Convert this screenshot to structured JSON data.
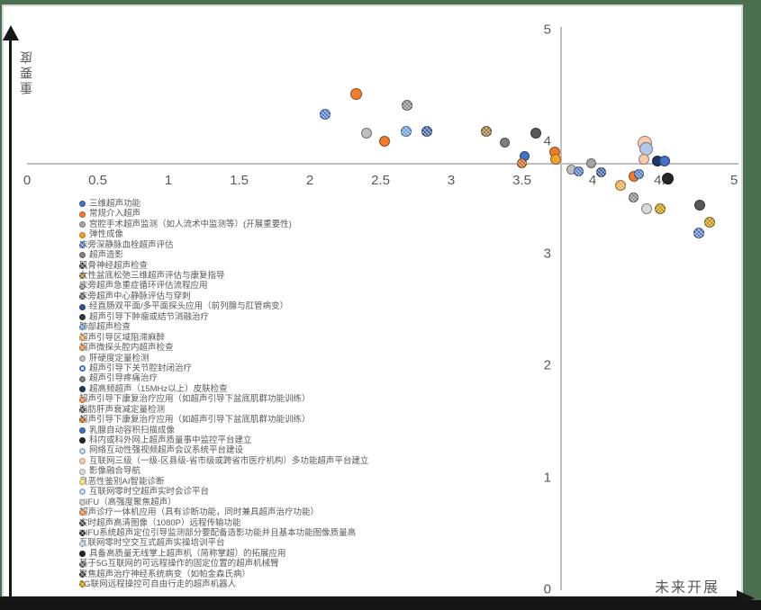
{
  "frame": {
    "background_color": "#4A7050",
    "paper_color": "#FFFFFF",
    "paper_edge_color": "#D9D9D9",
    "quadrant_arrow_color": "#161616"
  },
  "chart_data": {
    "type": "scatter",
    "title": "",
    "xlabel": "未来开展",
    "ylabel": "重要度",
    "xlim": [
      0,
      5
    ],
    "ylim": [
      0,
      5
    ],
    "x_ticks": [
      "0",
      "0.5",
      "1",
      "1.5",
      "2",
      "2.5",
      "3",
      "3.5",
      "4",
      "4.5",
      "5"
    ],
    "x_tick_values": [
      0,
      0.5,
      1,
      1.5,
      2,
      2.5,
      3,
      3.5,
      4,
      4.5,
      5
    ],
    "y_ticks": [
      "5",
      "4",
      "3",
      "2",
      "1",
      "0"
    ],
    "y_tick_values": [
      5,
      4,
      3,
      2,
      1,
      0
    ],
    "axes_cross_at": [
      3.8,
      3.8
    ],
    "grid": false,
    "axis_color": "#BFBFBF",
    "tick_label_color": "#595959",
    "legend_position": "left",
    "points": [
      {
        "x": 2.11,
        "y": 4.24,
        "color": "#4472C4",
        "pattern": true,
        "size": 12
      },
      {
        "x": 2.33,
        "y": 4.42,
        "color": "#ED7D31",
        "pattern": false,
        "size": 13
      },
      {
        "x": 2.69,
        "y": 4.32,
        "color": "#808080",
        "pattern": true,
        "size": 12
      },
      {
        "x": 2.4,
        "y": 4.07,
        "color": "#BFBFBF",
        "pattern": false,
        "size": 12
      },
      {
        "x": 2.53,
        "y": 4.0,
        "color": "#ED7D31",
        "pattern": false,
        "size": 12
      },
      {
        "x": 2.68,
        "y": 4.09,
        "color": "#5B9BD5",
        "pattern": true,
        "size": 12
      },
      {
        "x": 2.83,
        "y": 4.09,
        "color": "#2F5597",
        "pattern": true,
        "size": 12
      },
      {
        "x": 3.25,
        "y": 4.09,
        "color": "#946B2D",
        "pattern": true,
        "size": 12
      },
      {
        "x": 3.38,
        "y": 3.99,
        "color": "#7F7F7F",
        "pattern": false,
        "size": 11
      },
      {
        "x": 3.52,
        "y": 3.87,
        "color": "#4472C4",
        "pattern": false,
        "size": 11
      },
      {
        "x": 3.5,
        "y": 3.8,
        "color": "#C55A11",
        "pattern": true,
        "size": 11
      },
      {
        "x": 3.6,
        "y": 4.07,
        "color": "#595959",
        "pattern": false,
        "size": 12
      },
      {
        "x": 3.73,
        "y": 3.9,
        "color": "#ED7D31",
        "pattern": false,
        "size": 12
      },
      {
        "x": 3.74,
        "y": 3.84,
        "color": "#F0A22E",
        "pattern": false,
        "size": 12
      },
      {
        "x": 3.85,
        "y": 3.75,
        "color": "#BFBFBF",
        "pattern": false,
        "size": 11
      },
      {
        "x": 3.9,
        "y": 3.73,
        "color": "#4472C4",
        "pattern": true,
        "size": 11
      },
      {
        "x": 3.99,
        "y": 3.8,
        "color": "#A5A5A5",
        "pattern": false,
        "size": 11
      },
      {
        "x": 4.06,
        "y": 3.72,
        "color": "#2F5597",
        "pattern": true,
        "size": 11
      },
      {
        "x": 4.2,
        "y": 3.61,
        "color": "#E8A33D",
        "pattern": true,
        "size": 12
      },
      {
        "x": 4.29,
        "y": 3.69,
        "color": "#ED7D31",
        "pattern": false,
        "size": 12
      },
      {
        "x": 4.33,
        "y": 3.71,
        "color": "#4472C4",
        "pattern": true,
        "size": 11
      },
      {
        "x": 4.37,
        "y": 3.98,
        "color": "#F8CBAD",
        "pattern": false,
        "size": 16
      },
      {
        "x": 4.38,
        "y": 3.93,
        "color": "#B4C7E7",
        "pattern": false,
        "size": 15
      },
      {
        "x": 4.36,
        "y": 3.84,
        "color": "#F8CBAD",
        "pattern": false,
        "size": 12
      },
      {
        "x": 4.46,
        "y": 3.82,
        "color": "#1F3864",
        "pattern": false,
        "size": 12
      },
      {
        "x": 4.51,
        "y": 3.82,
        "color": "#4472C4",
        "pattern": false,
        "size": 12
      },
      {
        "x": 4.53,
        "y": 3.67,
        "color": "#262626",
        "pattern": false,
        "size": 13
      },
      {
        "x": 4.29,
        "y": 3.5,
        "color": "#7F7F7F",
        "pattern": true,
        "size": 11
      },
      {
        "x": 4.38,
        "y": 3.4,
        "color": "#D9D9D9",
        "pattern": false,
        "size": 12
      },
      {
        "x": 4.48,
        "y": 3.4,
        "color": "#BF8F00",
        "pattern": true,
        "size": 12
      },
      {
        "x": 4.76,
        "y": 3.43,
        "color": "#595959",
        "pattern": false,
        "size": 12
      },
      {
        "x": 4.83,
        "y": 3.28,
        "color": "#BF8F00",
        "pattern": true,
        "size": 12
      },
      {
        "x": 4.75,
        "y": 3.18,
        "color": "#4472C4",
        "pattern": true,
        "size": 12
      }
    ],
    "legend": [
      {
        "label": "三维超声功能",
        "color": "#4472C4",
        "pattern": false
      },
      {
        "label": "常规介入超声",
        "color": "#ED7D31",
        "pattern": false
      },
      {
        "label": "宫腔手术超声监测（如人流术中监测等）(开展重要性)",
        "color": "#A5A5A5",
        "pattern": false
      },
      {
        "label": "弹性成像",
        "color": "#F0A22E",
        "pattern": false
      },
      {
        "label": "床旁深静脉血栓超声评估",
        "color": "#4472C4",
        "pattern": true
      },
      {
        "label": "超声造影",
        "color": "#808080",
        "pattern": false
      },
      {
        "label": "肌骨神经超声检查",
        "color": "#404040",
        "pattern": true
      },
      {
        "label": "女性盆底松弛三维超声评估与康复指导",
        "color": "#946B2D",
        "pattern": true
      },
      {
        "label": "床旁超声急重症循环评估流程应用",
        "color": "#808080",
        "pattern": true
      },
      {
        "label": "床旁超声中心静脉评估与穿刺",
        "color": "#595959",
        "pattern": true
      },
      {
        "label": "经直肠双平面/多平面探头应用（前列腺与肛管病变）",
        "color": "#2F5597",
        "pattern": false
      },
      {
        "label": "超声引导下肿瘤或结节消融治疗",
        "color": "#3B3838",
        "pattern": false
      },
      {
        "label": "肺部超声检查",
        "color": "#5B9BD5",
        "pattern": true
      },
      {
        "label": "超声引导区域阻滞麻醉",
        "color": "#E8A33D",
        "pattern": true
      },
      {
        "label": "超声微探头腔内超声检查",
        "color": "#ED7D31",
        "pattern": true
      },
      {
        "label": "肝硬度定量检测",
        "color": "#BFBFBF",
        "pattern": false
      },
      {
        "label": "超声引导下关节腔封闭治疗",
        "color": "#FFFFFF",
        "pattern": false,
        "outline": "#4472C4"
      },
      {
        "label": "超声引导疼痛治疗",
        "color": "#7F7F7F",
        "pattern": false
      },
      {
        "label": "超高频超声（15MHz以上）皮肤检查",
        "color": "#1F3864",
        "pattern": false
      },
      {
        "label": "超声引导下康复治疗应用（如超声引导下盆底肌群功能训练）",
        "color": "#ED7D31",
        "pattern": true
      },
      {
        "label": "脂肪肝声衰减定量检测",
        "color": "#525252",
        "pattern": true
      },
      {
        "label": "超声引导下康复治疗应用（如超声引导下盆底肌群功能训练）",
        "color": "#C55A11",
        "pattern": true
      },
      {
        "label": "乳腺自动容积扫描成像",
        "color": "#4472C4",
        "pattern": false
      },
      {
        "label": "科内或科外网上超声质量事中监控平台建立",
        "color": "#262626",
        "pattern": false
      },
      {
        "label": "网络互动性强视频超声会议系统平台建设",
        "color": "#FFFFFF",
        "pattern": false,
        "outline": "#8FAADC"
      },
      {
        "label": "互联网三级（一级-区县级-省市级或跨省市医疗机构）多功能超声平台建立",
        "color": "#F8CBAD",
        "pattern": false
      },
      {
        "label": "影像融合导航",
        "color": "#D9D9D9",
        "pattern": false
      },
      {
        "label": "良恶性鉴别AI智能诊断",
        "color": "#FFD966",
        "pattern": true
      },
      {
        "label": "互联网零时空超声实时会诊平台",
        "color": "#FFFFFF",
        "pattern": false,
        "outline": "#8FAADC"
      },
      {
        "label": "HIFU（高强度聚焦超声）",
        "color": "#BFBFBF",
        "pattern": true
      },
      {
        "label": "超声诊疗一体机应用（具有诊断功能，同时兼具超声治疗功能）",
        "color": "#ED7D31",
        "pattern": true
      },
      {
        "label": "实时超声高清图像（1080P）远程传输功能",
        "color": "#404040",
        "pattern": true
      },
      {
        "label": "HIFU系统超声定位引导监测部分要配备造影功能并且基本功能图像质量高",
        "color": "#262626",
        "pattern": true
      },
      {
        "label": "互联网零时空交互式超声实操培训平台",
        "color": "#B4C7E7",
        "pattern": true
      },
      {
        "label": "具备高质量无线掌上超声机（简称掌超）的拓展应用",
        "color": "#262626",
        "pattern": false
      },
      {
        "label": "基于5G互联网的可远程操作的固定位置的超声机械臂",
        "color": "#595959",
        "pattern": true
      },
      {
        "label": "聚焦超声治疗神经系统病变（如帕金森氏病）",
        "color": "#3B3838",
        "pattern": true
      },
      {
        "label": "5G联网远程操控可自由行走的超声机器人",
        "color": "#BF8F00",
        "pattern": true
      }
    ]
  }
}
